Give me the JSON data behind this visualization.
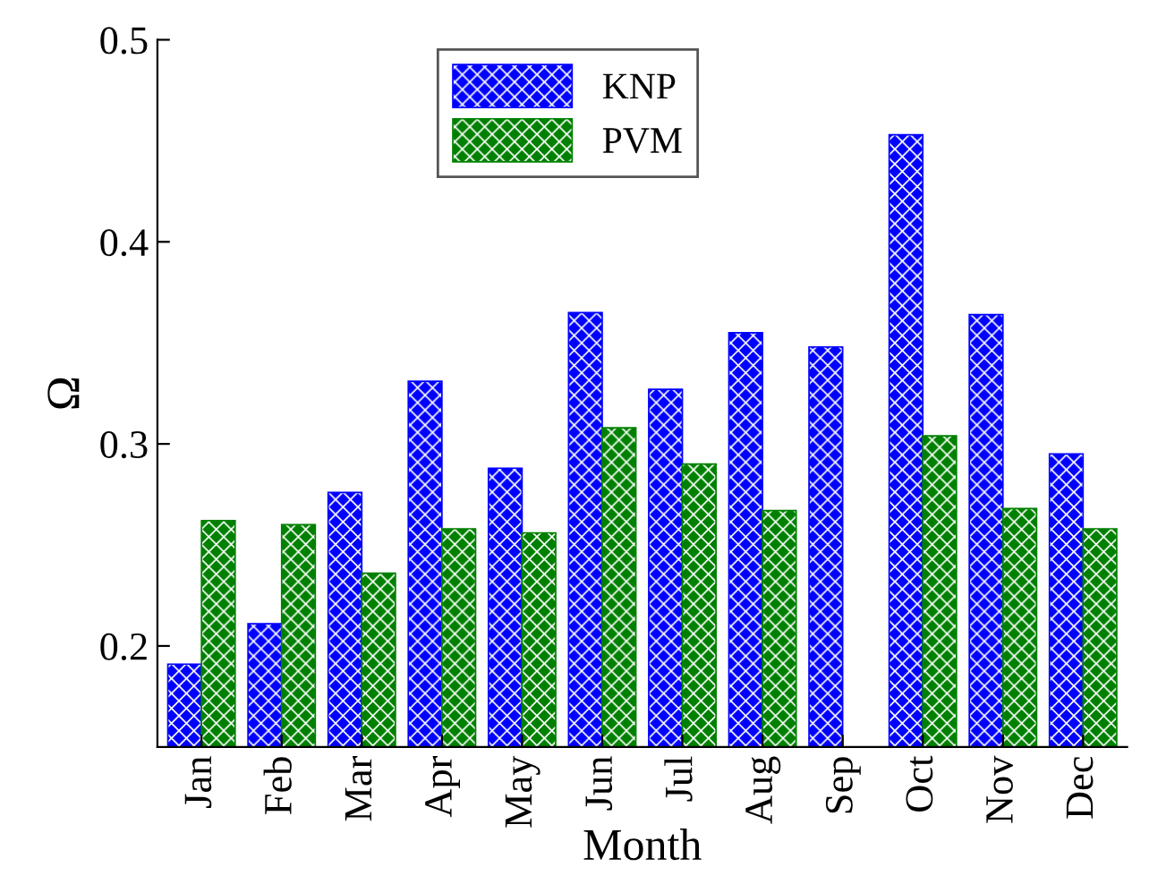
{
  "chart_data": {
    "type": "bar",
    "xlabel": "Month",
    "ylabel": "Ω",
    "categories": [
      "Jan",
      "Feb",
      "Mar",
      "Apr",
      "May",
      "Jun",
      "Jul",
      "Aug",
      "Sep",
      "Oct",
      "Nov",
      "Dec"
    ],
    "series": [
      {
        "name": "KNP",
        "color": "#0000ff",
        "values": [
          0.191,
          0.211,
          0.276,
          0.331,
          0.288,
          0.365,
          0.327,
          0.355,
          0.348,
          0.453,
          0.364,
          0.295
        ]
      },
      {
        "name": "PVM",
        "color": "#008000",
        "values": [
          0.262,
          0.26,
          0.236,
          0.258,
          0.256,
          0.308,
          0.29,
          0.267,
          null,
          0.304,
          0.268,
          0.258
        ]
      }
    ],
    "ylim": [
      0.15,
      0.5
    ],
    "yticks": [
      0.2,
      0.3,
      0.4,
      0.5
    ],
    "grid": false,
    "legend": "top center"
  }
}
